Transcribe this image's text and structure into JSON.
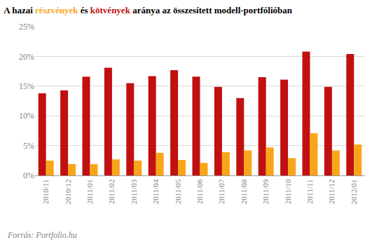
{
  "chart_data": {
    "type": "bar",
    "title": "A hazai részvények és kötvények aránya az összesített modell-portfólióban",
    "categories": [
      "2010/11",
      "2010/12",
      "2011/01",
      "2011/02",
      "2011/03",
      "2011/04",
      "2011/05",
      "2011/06",
      "2011/07",
      "2011/08",
      "2011/09",
      "2011/10",
      "2011/11",
      "2011/12",
      "2012/01"
    ],
    "series": [
      {
        "name": "kötvények",
        "color": "#c0100f",
        "values": [
          13.8,
          14.3,
          16.6,
          18.1,
          15.5,
          16.7,
          17.7,
          16.6,
          14.9,
          13.0,
          16.5,
          16.1,
          20.8,
          14.9,
          20.4
        ]
      },
      {
        "name": "részvények",
        "color": "#f9a51a",
        "values": [
          2.5,
          1.9,
          1.9,
          2.7,
          2.5,
          3.8,
          2.6,
          2.1,
          3.9,
          4.2,
          4.7,
          2.9,
          7.1,
          4.2,
          5.2
        ]
      }
    ],
    "ylim": [
      0,
      25
    ],
    "yticks": [
      {
        "value": 0,
        "label": "0%"
      },
      {
        "value": 5,
        "label": "5%"
      },
      {
        "value": 10,
        "label": "10%"
      },
      {
        "value": 15,
        "label": "15%"
      },
      {
        "value": 20,
        "label": "20%"
      },
      {
        "value": 25,
        "label": "25%"
      }
    ],
    "grid": true,
    "annotations": [
      "Forrás: Portfolio.hu"
    ]
  }
}
